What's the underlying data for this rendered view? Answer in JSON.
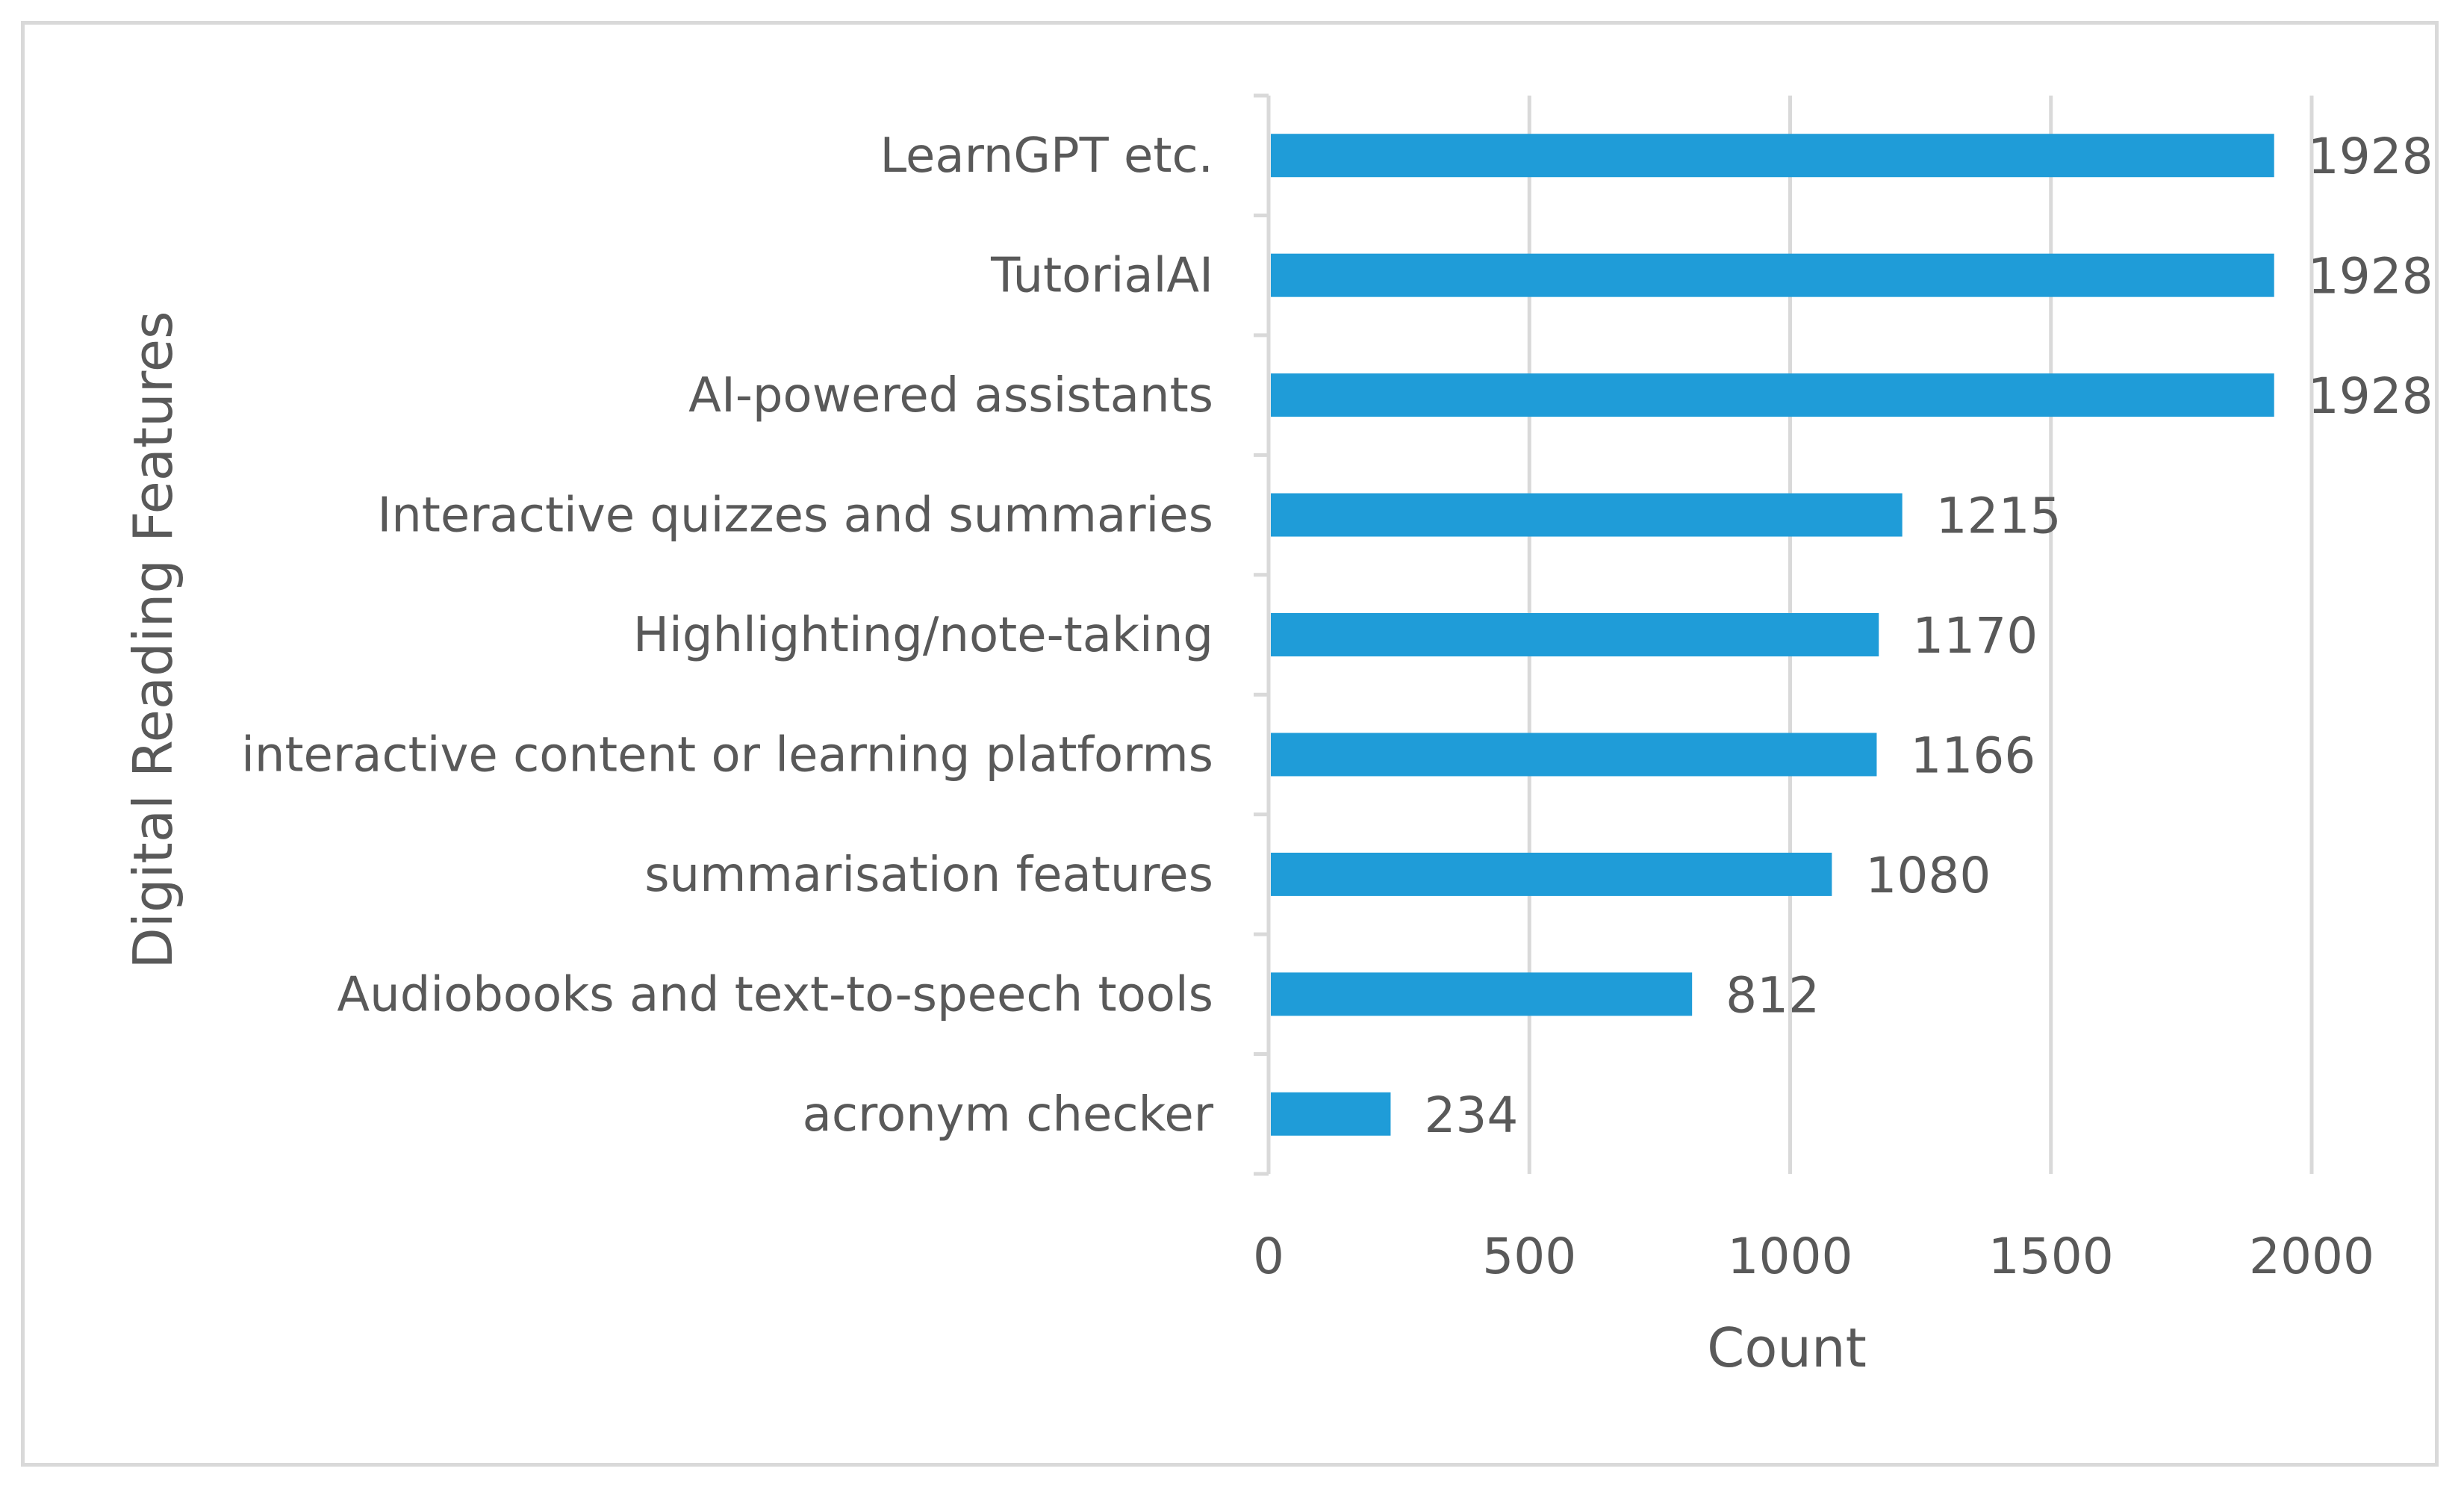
{
  "chart_data": {
    "type": "bar",
    "orientation": "horizontal",
    "title": "",
    "xlabel": "Count",
    "ylabel": "Digital Reading Features",
    "categories": [
      "LearnGPT etc.",
      "TutorialAI",
      "AI-powered assistants",
      "Interactive quizzes and summaries",
      "Highlighting/note-taking",
      "interactive content or learning platforms",
      "summarisation features",
      "Audiobooks and text-to-speech tools",
      "acronym checker"
    ],
    "values": [
      1928,
      1928,
      1928,
      1215,
      1170,
      1166,
      1080,
      812,
      234
    ],
    "xlim": [
      0,
      2000
    ],
    "xticks": [
      "0",
      "500",
      "1000",
      "1500",
      "2000"
    ],
    "grid": "vertical",
    "legend": "none",
    "data_labels": true,
    "colors": {
      "bar": "#1f9cd8",
      "gridline": "#d9d9d9",
      "text": "#595959",
      "frame": "#d9d9d9"
    }
  }
}
